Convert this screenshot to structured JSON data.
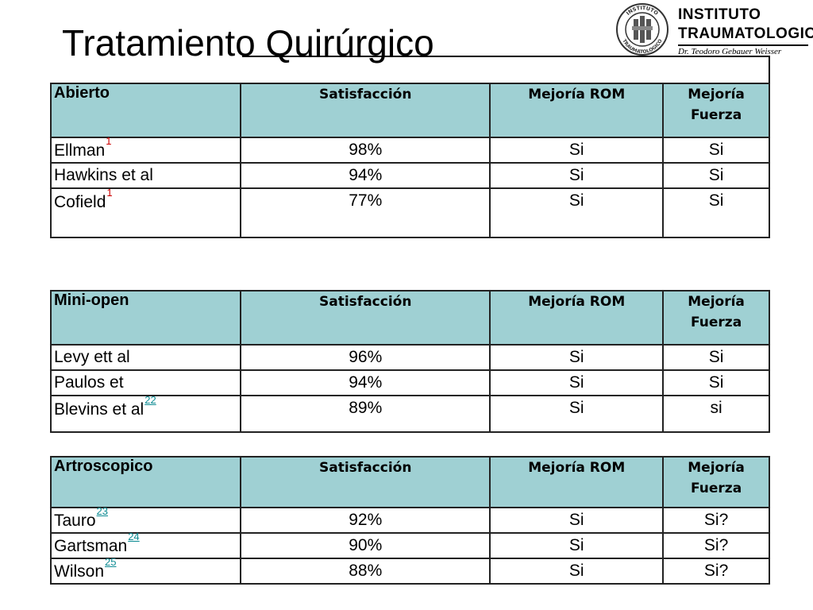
{
  "title": "Tratamiento Quirúrgico",
  "logo": {
    "seal_text": "INSTITUTO TRAUMATOLOGICO",
    "name_line1": "INSTITUTO",
    "name_line2": "TRAUMATOLOGICO",
    "subtitle": "Dr. Teodoro Gebauer Weisser"
  },
  "colors": {
    "header_bg": "#9fd0d3",
    "ref_red": "#cc0000",
    "ref_link": "#0b8a92"
  },
  "tables": [
    {
      "group": "Abierto",
      "columns": [
        "Satisfacción",
        "Mejoría ROM",
        "Mejoría Fuerza"
      ],
      "rows": [
        {
          "name": "Ellman",
          "ref": "1",
          "satisfaccion": "98%",
          "rom": "Si",
          "fuerza": "Si"
        },
        {
          "name": "Hawkins et al",
          "ref": "",
          "satisfaccion": "94%",
          "rom": "Si",
          "fuerza": "Si"
        },
        {
          "name": "Cofield",
          "ref": "1",
          "satisfaccion": "77%",
          "rom": "Si",
          "fuerza": "Si"
        }
      ]
    },
    {
      "group": "Mini-open",
      "columns": [
        "Satisfacción",
        "Mejoría ROM",
        "Mejoría Fuerza"
      ],
      "rows": [
        {
          "name": "Levy ett al",
          "ref": "",
          "satisfaccion": "96%",
          "rom": "Si",
          "fuerza": "Si"
        },
        {
          "name": "Paulos et",
          "ref": "",
          "satisfaccion": "94%",
          "rom": "Si",
          "fuerza": "Si"
        },
        {
          "name": "Blevins et al",
          "ref": "22",
          "satisfaccion": "89%",
          "rom": "Si",
          "fuerza": "si"
        }
      ]
    },
    {
      "group": "Artroscopico",
      "columns": [
        "Satisfacción",
        "Mejoría ROM",
        "Mejoría Fuerza"
      ],
      "rows": [
        {
          "name": "Tauro",
          "ref": "23",
          "satisfaccion": "92%",
          "rom": "Si",
          "fuerza": "Si?"
        },
        {
          "name": "Gartsman",
          "ref": "24",
          "satisfaccion": "90%",
          "rom": "Si",
          "fuerza": "Si?"
        },
        {
          "name": "Wilson",
          "ref": "25",
          "satisfaccion": "88%",
          "rom": "Si",
          "fuerza": "Si?"
        }
      ]
    }
  ]
}
